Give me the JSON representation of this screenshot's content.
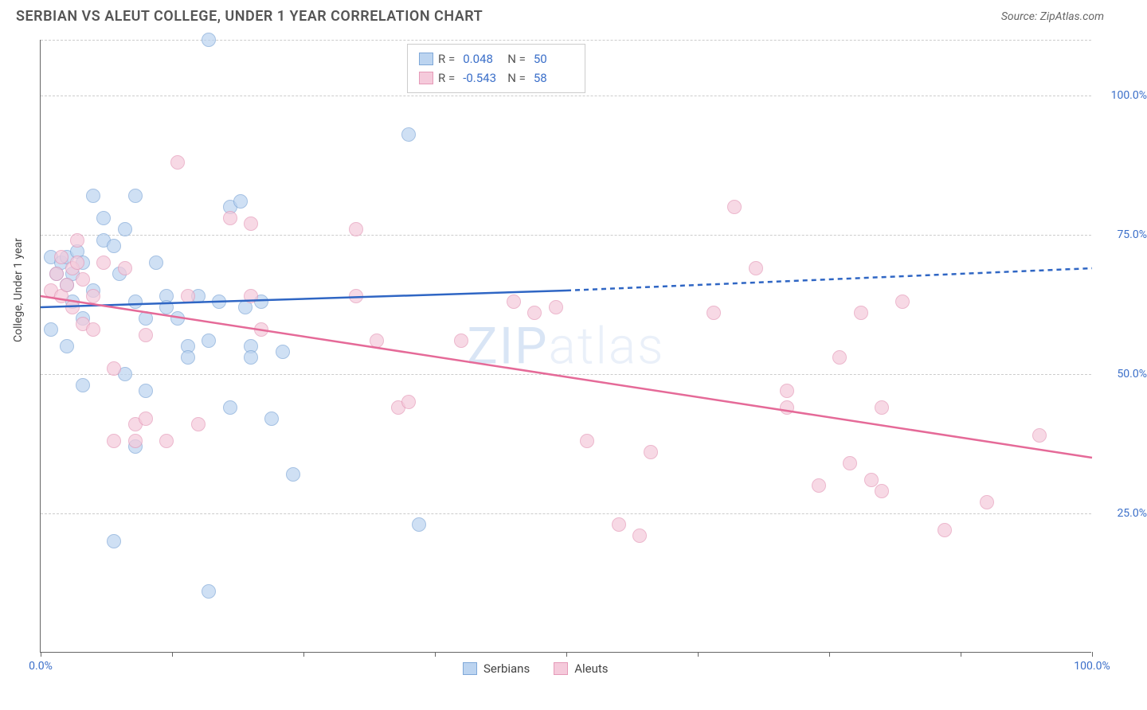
{
  "title": "SERBIAN VS ALEUT COLLEGE, UNDER 1 YEAR CORRELATION CHART",
  "source": "Source: ZipAtlas.com",
  "y_axis_label": "College, Under 1 year",
  "watermark": {
    "part1": "ZIP",
    "part2": "atlas"
  },
  "chart": {
    "type": "scatter",
    "xlim": [
      0,
      100
    ],
    "ylim": [
      0,
      110
    ],
    "x_ticks": [
      0,
      12.5,
      25,
      37.5,
      50,
      62.5,
      75,
      87.5,
      100
    ],
    "x_tick_labels": {
      "0": "0.0%",
      "100": "100.0%"
    },
    "y_gridlines": [
      25,
      50,
      75,
      100,
      110
    ],
    "y_tick_labels": {
      "25": "25.0%",
      "50": "50.0%",
      "75": "75.0%",
      "100": "100.0%"
    },
    "background_color": "#ffffff",
    "grid_color": "#cccccc",
    "axis_color": "#666666",
    "tick_label_color": "#3b6fc9",
    "tick_label_fontsize": 14,
    "marker_radius": 9,
    "marker_opacity": 0.7
  },
  "series": [
    {
      "name": "Serbians",
      "fill_color": "#bcd4f0",
      "stroke_color": "#7fa8d8",
      "line_color": "#2f66c4",
      "r_value": "0.048",
      "n_value": "50",
      "trend": {
        "x1": 0,
        "y1": 62,
        "x2_solid": 50,
        "y2_solid": 65,
        "x2_dash": 100,
        "y2_dash": 69
      },
      "points": [
        [
          1,
          71
        ],
        [
          1.5,
          68
        ],
        [
          2,
          70
        ],
        [
          2.5,
          66
        ],
        [
          2.5,
          71
        ],
        [
          3,
          68
        ],
        [
          3.5,
          72
        ],
        [
          3,
          63
        ],
        [
          4,
          70
        ],
        [
          4,
          60
        ],
        [
          5,
          82
        ],
        [
          5,
          65
        ],
        [
          6,
          78
        ],
        [
          6,
          74
        ],
        [
          7,
          73
        ],
        [
          7.5,
          68
        ],
        [
          8,
          76
        ],
        [
          8,
          50
        ],
        [
          9,
          82
        ],
        [
          9,
          63
        ],
        [
          10,
          47
        ],
        [
          10,
          60
        ],
        [
          11,
          70
        ],
        [
          12,
          64
        ],
        [
          12,
          62
        ],
        [
          13,
          60
        ],
        [
          14,
          55
        ],
        [
          14,
          53
        ],
        [
          15,
          64
        ],
        [
          16,
          110
        ],
        [
          16,
          56
        ],
        [
          17,
          63
        ],
        [
          18,
          80
        ],
        [
          18,
          44
        ],
        [
          19,
          81
        ],
        [
          19.5,
          62
        ],
        [
          20,
          55
        ],
        [
          20,
          53
        ],
        [
          21,
          63
        ],
        [
          22,
          42
        ],
        [
          23,
          54
        ],
        [
          24,
          32
        ],
        [
          7,
          20
        ],
        [
          9,
          37
        ],
        [
          4,
          48
        ],
        [
          16,
          11
        ],
        [
          35,
          93
        ],
        [
          36,
          23
        ],
        [
          1,
          58
        ],
        [
          2.5,
          55
        ]
      ]
    },
    {
      "name": "Aleuts",
      "fill_color": "#f5cadb",
      "stroke_color": "#e59ab8",
      "line_color": "#e56a98",
      "r_value": "-0.543",
      "n_value": "58",
      "trend": {
        "x1": 0,
        "y1": 64,
        "x2_solid": 100,
        "y2_solid": 35,
        "x2_dash": 100,
        "y2_dash": 35
      },
      "points": [
        [
          1,
          65
        ],
        [
          1.5,
          68
        ],
        [
          2,
          71
        ],
        [
          2,
          64
        ],
        [
          2.5,
          66
        ],
        [
          3,
          69
        ],
        [
          3,
          62
        ],
        [
          3.5,
          70
        ],
        [
          4,
          67
        ],
        [
          4,
          59
        ],
        [
          5,
          64
        ],
        [
          5,
          58
        ],
        [
          6,
          70
        ],
        [
          7,
          38
        ],
        [
          7,
          51
        ],
        [
          8,
          69
        ],
        [
          9,
          38
        ],
        [
          9,
          41
        ],
        [
          10,
          42
        ],
        [
          10,
          57
        ],
        [
          12,
          38
        ],
        [
          13,
          88
        ],
        [
          14,
          64
        ],
        [
          15,
          41
        ],
        [
          18,
          78
        ],
        [
          20,
          77
        ],
        [
          20,
          64
        ],
        [
          21,
          58
        ],
        [
          30,
          76
        ],
        [
          30,
          64
        ],
        [
          32,
          56
        ],
        [
          34,
          44
        ],
        [
          35,
          45
        ],
        [
          40,
          56
        ],
        [
          45,
          63
        ],
        [
          47,
          61
        ],
        [
          49,
          62
        ],
        [
          52,
          38
        ],
        [
          55,
          23
        ],
        [
          57,
          21
        ],
        [
          58,
          36
        ],
        [
          64,
          61
        ],
        [
          66,
          80
        ],
        [
          68,
          69
        ],
        [
          71,
          44
        ],
        [
          71,
          47
        ],
        [
          74,
          30
        ],
        [
          76,
          53
        ],
        [
          77,
          34
        ],
        [
          78,
          61
        ],
        [
          79,
          31
        ],
        [
          80,
          44
        ],
        [
          80,
          29
        ],
        [
          82,
          63
        ],
        [
          86,
          22
        ],
        [
          90,
          27
        ],
        [
          95,
          39
        ],
        [
          3.5,
          74
        ]
      ]
    }
  ],
  "legend_top": {
    "r_label": "R =",
    "n_label": "N ="
  },
  "legend_bottom": [
    {
      "label": "Serbians",
      "fill": "#bcd4f0",
      "stroke": "#7fa8d8"
    },
    {
      "label": "Aleuts",
      "fill": "#f5cadb",
      "stroke": "#e59ab8"
    }
  ]
}
